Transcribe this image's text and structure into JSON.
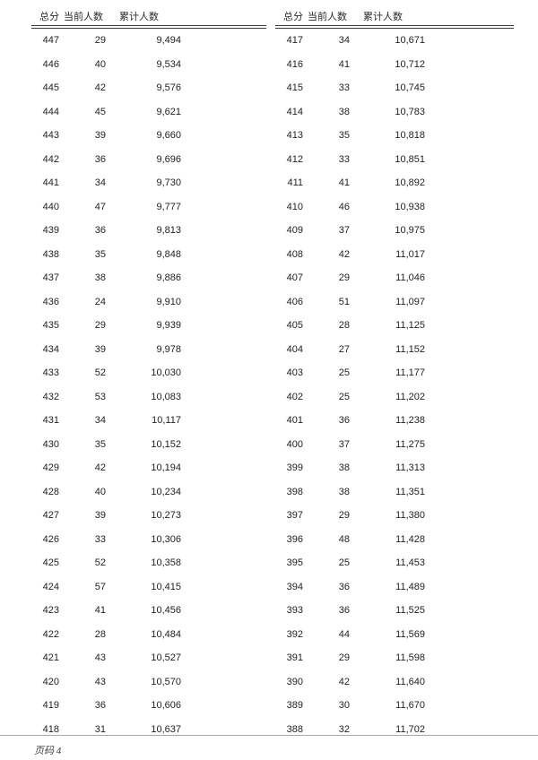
{
  "columns": [
    "总分",
    "当前人数",
    "累计人数"
  ],
  "tables": [
    {
      "rows": [
        [
          "447",
          "29",
          "9,494"
        ],
        [
          "446",
          "40",
          "9,534"
        ],
        [
          "445",
          "42",
          "9,576"
        ],
        [
          "444",
          "45",
          "9,621"
        ],
        [
          "443",
          "39",
          "9,660"
        ],
        [
          "442",
          "36",
          "9,696"
        ],
        [
          "441",
          "34",
          "9,730"
        ],
        [
          "440",
          "47",
          "9,777"
        ],
        [
          "439",
          "36",
          "9,813"
        ],
        [
          "438",
          "35",
          "9,848"
        ],
        [
          "437",
          "38",
          "9,886"
        ],
        [
          "436",
          "24",
          "9,910"
        ],
        [
          "435",
          "29",
          "9,939"
        ],
        [
          "434",
          "39",
          "9,978"
        ],
        [
          "433",
          "52",
          "10,030"
        ],
        [
          "432",
          "53",
          "10,083"
        ],
        [
          "431",
          "34",
          "10,117"
        ],
        [
          "430",
          "35",
          "10,152"
        ],
        [
          "429",
          "42",
          "10,194"
        ],
        [
          "428",
          "40",
          "10,234"
        ],
        [
          "427",
          "39",
          "10,273"
        ],
        [
          "426",
          "33",
          "10,306"
        ],
        [
          "425",
          "52",
          "10,358"
        ],
        [
          "424",
          "57",
          "10,415"
        ],
        [
          "423",
          "41",
          "10,456"
        ],
        [
          "422",
          "28",
          "10,484"
        ],
        [
          "421",
          "43",
          "10,527"
        ],
        [
          "420",
          "43",
          "10,570"
        ],
        [
          "419",
          "36",
          "10,606"
        ],
        [
          "418",
          "31",
          "10,637"
        ]
      ]
    },
    {
      "rows": [
        [
          "417",
          "34",
          "10,671"
        ],
        [
          "416",
          "41",
          "10,712"
        ],
        [
          "415",
          "33",
          "10,745"
        ],
        [
          "414",
          "38",
          "10,783"
        ],
        [
          "413",
          "35",
          "10,818"
        ],
        [
          "412",
          "33",
          "10,851"
        ],
        [
          "411",
          "41",
          "10,892"
        ],
        [
          "410",
          "46",
          "10,938"
        ],
        [
          "409",
          "37",
          "10,975"
        ],
        [
          "408",
          "42",
          "11,017"
        ],
        [
          "407",
          "29",
          "11,046"
        ],
        [
          "406",
          "51",
          "11,097"
        ],
        [
          "405",
          "28",
          "11,125"
        ],
        [
          "404",
          "27",
          "11,152"
        ],
        [
          "403",
          "25",
          "11,177"
        ],
        [
          "402",
          "25",
          "11,202"
        ],
        [
          "401",
          "36",
          "11,238"
        ],
        [
          "400",
          "37",
          "11,275"
        ],
        [
          "399",
          "38",
          "11,313"
        ],
        [
          "398",
          "38",
          "11,351"
        ],
        [
          "397",
          "29",
          "11,380"
        ],
        [
          "396",
          "48",
          "11,428"
        ],
        [
          "395",
          "25",
          "11,453"
        ],
        [
          "394",
          "36",
          "11,489"
        ],
        [
          "393",
          "36",
          "11,525"
        ],
        [
          "392",
          "44",
          "11,569"
        ],
        [
          "391",
          "29",
          "11,598"
        ],
        [
          "390",
          "42",
          "11,640"
        ],
        [
          "389",
          "30",
          "11,670"
        ],
        [
          "388",
          "32",
          "11,702"
        ]
      ]
    }
  ],
  "footer": {
    "label": "页码 4"
  }
}
